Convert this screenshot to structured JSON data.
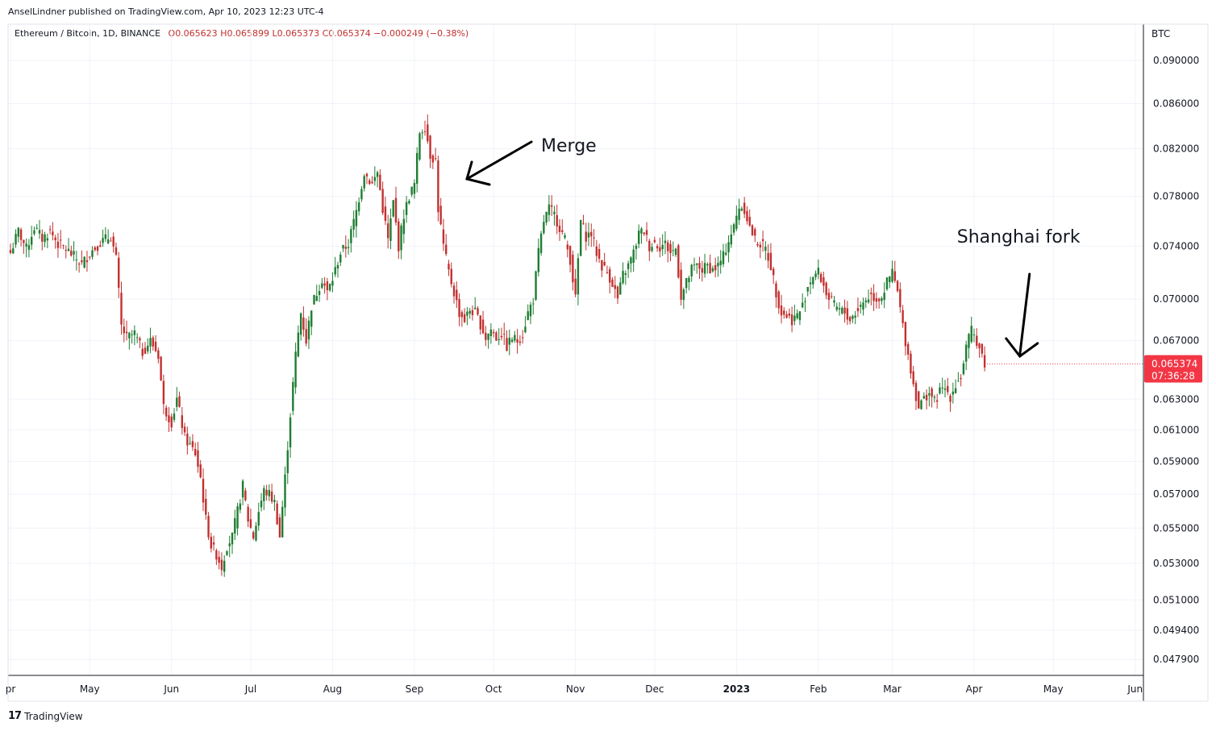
{
  "header": {
    "published": "AnselLindner published on TradingView.com, Apr 10, 2023 12:23 UTC-4"
  },
  "legend": {
    "symbol": "Ethereum / Bitcoin, 1D, BINANCE",
    "open": "O0.065623",
    "high": "H0.065899",
    "low": "L0.065373",
    "close": "C0.065374",
    "change": "−0.000249 (−0.38%)"
  },
  "footer": {
    "brand": "TradingView"
  },
  "colors": {
    "up": "#1e7d32",
    "down": "#c2302f",
    "price_tag": "#f23645",
    "grid": "#f0f3fa",
    "axis": "#787b86"
  },
  "chart_data": {
    "type": "candlestick",
    "title": "Ethereum / Bitcoin, 1D, BINANCE",
    "currency": "BTC",
    "scale": "log",
    "ylim": [
      0.0471,
      0.0935
    ],
    "y_ticks": [
      0.0479,
      0.0494,
      0.051,
      0.053,
      0.055,
      0.057,
      0.059,
      0.061,
      0.063,
      0.067,
      0.07,
      0.074,
      0.078,
      0.082,
      0.086,
      0.09
    ],
    "y_tick_labels": [
      "0.047900",
      "0.049400",
      "0.051000",
      "0.053000",
      "0.055000",
      "0.057000",
      "0.059000",
      "0.061000",
      "0.063000",
      "0.067000",
      "0.070000",
      "0.074000",
      "0.078000",
      "0.082000",
      "0.086000",
      "0.090000"
    ],
    "x_labels": [
      {
        "label": "pr",
        "day": 0
      },
      {
        "label": "May",
        "day": 30
      },
      {
        "label": "Jun",
        "day": 61
      },
      {
        "label": "Jul",
        "day": 91
      },
      {
        "label": "Aug",
        "day": 122
      },
      {
        "label": "Sep",
        "day": 153
      },
      {
        "label": "Oct",
        "day": 183
      },
      {
        "label": "Nov",
        "day": 214
      },
      {
        "label": "Dec",
        "day": 244
      },
      {
        "label": "2023",
        "day": 275,
        "bold": true
      },
      {
        "label": "Feb",
        "day": 306
      },
      {
        "label": "Mar",
        "day": 334
      },
      {
        "label": "Apr",
        "day": 365
      },
      {
        "label": "May",
        "day": 395
      },
      {
        "label": "Jun",
        "day": 426
      }
    ],
    "last_price": "0.065374",
    "countdown": "07:36:28",
    "last_value": 0.065374,
    "anchors": [
      [
        0,
        0.0735
      ],
      [
        3,
        0.0752
      ],
      [
        6,
        0.0738
      ],
      [
        9,
        0.0755
      ],
      [
        12,
        0.0746
      ],
      [
        15,
        0.0752
      ],
      [
        18,
        0.0742
      ],
      [
        21,
        0.0738
      ],
      [
        24,
        0.0732
      ],
      [
        27,
        0.0726
      ],
      [
        30,
        0.0735
      ],
      [
        34,
        0.0743
      ],
      [
        38,
        0.0748
      ],
      [
        40,
        0.073
      ],
      [
        42,
        0.068
      ],
      [
        44,
        0.0672
      ],
      [
        47,
        0.0675
      ],
      [
        50,
        0.0662
      ],
      [
        53,
        0.067
      ],
      [
        56,
        0.066
      ],
      [
        58,
        0.0625
      ],
      [
        61,
        0.0615
      ],
      [
        63,
        0.063
      ],
      [
        66,
        0.0605
      ],
      [
        70,
        0.0595
      ],
      [
        72,
        0.058
      ],
      [
        74,
        0.0555
      ],
      [
        76,
        0.054
      ],
      [
        78,
        0.0535
      ],
      [
        80,
        0.0528
      ],
      [
        82,
        0.054
      ],
      [
        84,
        0.0545
      ],
      [
        86,
        0.056
      ],
      [
        88,
        0.0575
      ],
      [
        90,
        0.0555
      ],
      [
        92,
        0.0545
      ],
      [
        94,
        0.056
      ],
      [
        96,
        0.0572
      ],
      [
        98,
        0.057
      ],
      [
        100,
        0.0565
      ],
      [
        102,
        0.0545
      ],
      [
        104,
        0.058
      ],
      [
        106,
        0.062
      ],
      [
        108,
        0.066
      ],
      [
        110,
        0.069
      ],
      [
        112,
        0.067
      ],
      [
        114,
        0.0695
      ],
      [
        116,
        0.0705
      ],
      [
        118,
        0.0715
      ],
      [
        120,
        0.0705
      ],
      [
        122,
        0.0715
      ],
      [
        125,
        0.0735
      ],
      [
        128,
        0.0742
      ],
      [
        131,
        0.0768
      ],
      [
        134,
        0.08
      ],
      [
        137,
        0.079
      ],
      [
        139,
        0.08
      ],
      [
        141,
        0.077
      ],
      [
        143,
        0.0745
      ],
      [
        145,
        0.0775
      ],
      [
        147,
        0.074
      ],
      [
        149,
        0.0765
      ],
      [
        151,
        0.078
      ],
      [
        153,
        0.079
      ],
      [
        155,
        0.0835
      ],
      [
        157,
        0.084
      ],
      [
        159,
        0.0815
      ],
      [
        161,
        0.081
      ],
      [
        162,
        0.077
      ],
      [
        164,
        0.074
      ],
      [
        166,
        0.072
      ],
      [
        168,
        0.0705
      ],
      [
        170,
        0.069
      ],
      [
        172,
        0.0685
      ],
      [
        174,
        0.0692
      ],
      [
        176,
        0.069
      ],
      [
        178,
        0.0682
      ],
      [
        180,
        0.0672
      ],
      [
        182,
        0.0678
      ],
      [
        184,
        0.0672
      ],
      [
        186,
        0.0675
      ],
      [
        188,
        0.0666
      ],
      [
        190,
        0.0672
      ],
      [
        192,
        0.067
      ],
      [
        194,
        0.0675
      ],
      [
        196,
        0.069
      ],
      [
        198,
        0.07
      ],
      [
        200,
        0.0735
      ],
      [
        202,
        0.076
      ],
      [
        204,
        0.077
      ],
      [
        206,
        0.0765
      ],
      [
        208,
        0.0755
      ],
      [
        210,
        0.0745
      ],
      [
        212,
        0.073
      ],
      [
        214,
        0.07
      ],
      [
        216,
        0.076
      ],
      [
        218,
        0.0748
      ],
      [
        220,
        0.075
      ],
      [
        222,
        0.0735
      ],
      [
        224,
        0.0725
      ],
      [
        226,
        0.072
      ],
      [
        228,
        0.0712
      ],
      [
        230,
        0.07
      ],
      [
        232,
        0.0718
      ],
      [
        234,
        0.0725
      ],
      [
        236,
        0.0735
      ],
      [
        238,
        0.075
      ],
      [
        240,
        0.0752
      ],
      [
        242,
        0.074
      ],
      [
        244,
        0.0743
      ],
      [
        246,
        0.074
      ],
      [
        248,
        0.0742
      ],
      [
        250,
        0.0735
      ],
      [
        252,
        0.0738
      ],
      [
        254,
        0.0702
      ],
      [
        256,
        0.0712
      ],
      [
        258,
        0.0722
      ],
      [
        260,
        0.0725
      ],
      [
        262,
        0.0722
      ],
      [
        264,
        0.0725
      ],
      [
        266,
        0.0722
      ],
      [
        268,
        0.0725
      ],
      [
        270,
        0.0732
      ],
      [
        272,
        0.0745
      ],
      [
        274,
        0.0755
      ],
      [
        276,
        0.0772
      ],
      [
        278,
        0.077
      ],
      [
        280,
        0.0755
      ],
      [
        282,
        0.0745
      ],
      [
        284,
        0.0742
      ],
      [
        286,
        0.0738
      ],
      [
        288,
        0.0725
      ],
      [
        290,
        0.0705
      ],
      [
        292,
        0.069
      ],
      [
        294,
        0.0688
      ],
      [
        296,
        0.0685
      ],
      [
        298,
        0.0688
      ],
      [
        300,
        0.0695
      ],
      [
        302,
        0.071
      ],
      [
        304,
        0.0718
      ],
      [
        306,
        0.072
      ],
      [
        308,
        0.071
      ],
      [
        310,
        0.07
      ],
      [
        312,
        0.0695
      ],
      [
        314,
        0.0692
      ],
      [
        316,
        0.069
      ],
      [
        318,
        0.0685
      ],
      [
        320,
        0.069
      ],
      [
        322,
        0.0695
      ],
      [
        324,
        0.07
      ],
      [
        326,
        0.0703
      ],
      [
        328,
        0.07
      ],
      [
        330,
        0.0702
      ],
      [
        332,
        0.0712
      ],
      [
        334,
        0.072
      ],
      [
        336,
        0.0705
      ],
      [
        338,
        0.068
      ],
      [
        340,
        0.066
      ],
      [
        342,
        0.064
      ],
      [
        344,
        0.0625
      ],
      [
        346,
        0.063
      ],
      [
        348,
        0.0635
      ],
      [
        350,
        0.0628
      ],
      [
        352,
        0.0635
      ],
      [
        354,
        0.0637
      ],
      [
        356,
        0.0632
      ],
      [
        358,
        0.064
      ],
      [
        360,
        0.0645
      ],
      [
        362,
        0.0665
      ],
      [
        364,
        0.0677
      ],
      [
        366,
        0.067
      ],
      [
        368,
        0.066
      ],
      [
        369,
        0.06537
      ]
    ],
    "annotations": [
      {
        "text": "Merge",
        "day": 157
      },
      {
        "text": "Shanghai fork",
        "day": 375
      }
    ]
  }
}
